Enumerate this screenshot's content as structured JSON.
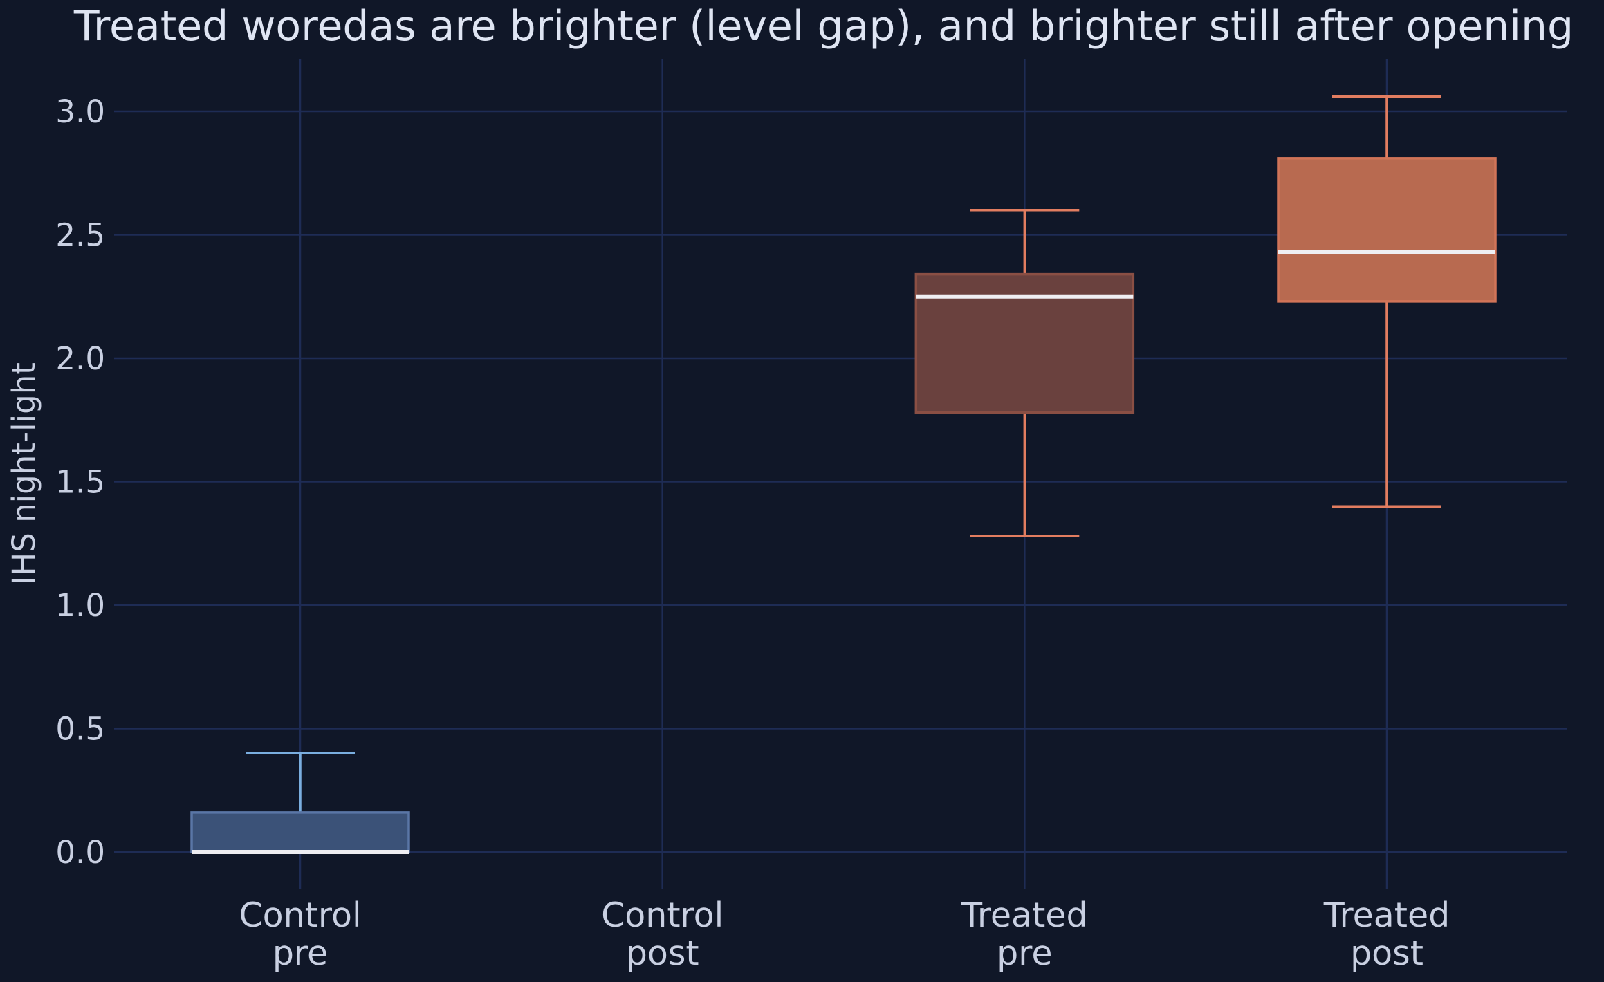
{
  "chart_data": {
    "type": "box",
    "title": "Treated woredas are brighter (level gap), and brighter still after opening",
    "xlabel": "",
    "ylabel": "IHS night-light",
    "ylim": [
      -0.15,
      3.22
    ],
    "yticks": [
      0.0,
      0.5,
      1.0,
      1.5,
      2.0,
      2.5,
      3.0
    ],
    "ytick_labels": [
      "0.0",
      "0.5",
      "1.0",
      "1.5",
      "2.0",
      "2.5",
      "3.0"
    ],
    "grid": true,
    "categories": [
      {
        "line1": "Control",
        "line2": "pre"
      },
      {
        "line1": "Control",
        "line2": "post"
      },
      {
        "line1": "Treated",
        "line2": "pre"
      },
      {
        "line1": "Treated",
        "line2": "post"
      }
    ],
    "boxes": [
      {
        "whisker_low": 0.0,
        "q1": 0.0,
        "median": 0.0,
        "q3": 0.16,
        "whisker_high": 0.4,
        "fill": "#3b5278",
        "edge": "#5a76a6",
        "whisker": "#7aaee0"
      },
      null,
      {
        "whisker_low": 1.28,
        "q1": 1.78,
        "median": 2.25,
        "q3": 2.34,
        "whisker_high": 2.6,
        "fill": "#6a413e",
        "edge": "#8a4f44",
        "whisker": "#e27d60"
      },
      {
        "whisker_low": 1.4,
        "q1": 2.23,
        "median": 2.43,
        "q3": 2.81,
        "whisker_high": 3.06,
        "fill": "#b86a50",
        "edge": "#d17458",
        "whisker": "#e27d60"
      }
    ],
    "colors": {
      "background": "#101728",
      "grid": "#1e2c55",
      "median": "#eeeef2",
      "text": "#c9d0e2"
    }
  }
}
